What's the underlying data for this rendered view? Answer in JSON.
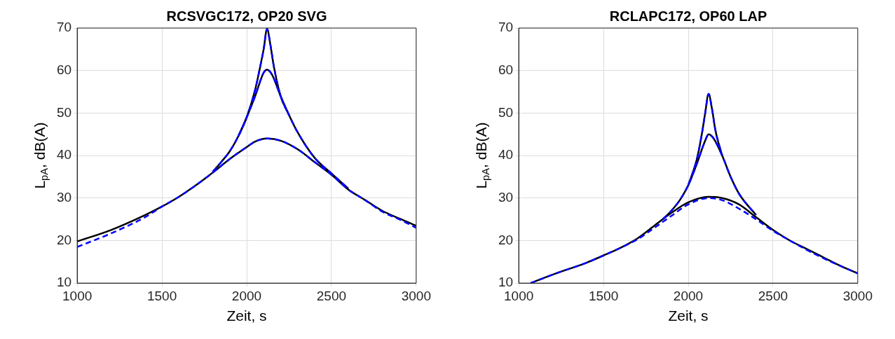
{
  "chart_data": [
    {
      "type": "line",
      "title": "RCSVGC172, OP20 SVG",
      "xlabel": "Zeit, s",
      "ylabel": "L$_{pA}$, dB(A)",
      "xlim": [
        1000,
        3000
      ],
      "xticks": [
        1000,
        1500,
        2000,
        2500,
        3000
      ],
      "ylim": [
        10,
        70
      ],
      "yticks": [
        10,
        20,
        30,
        40,
        50,
        60,
        70
      ],
      "grid": true,
      "legend": false,
      "marker": "none",
      "series": [
        {
          "color": "#000000",
          "line_style": "solid",
          "x": [
            1000,
            1200,
            1400,
            1500,
            1600,
            1700,
            1800,
            1900,
            2000,
            2050,
            2120,
            2200,
            2300,
            2400,
            2500,
            2600,
            2700,
            2800,
            2900,
            3000
          ],
          "values": [
            19.8,
            22.5,
            26,
            28,
            30.3,
            33,
            36,
            39.2,
            42,
            43.3,
            44,
            43.5,
            41.5,
            38.5,
            35.5,
            32,
            29.5,
            27,
            25.2,
            23.5
          ]
        },
        {
          "color": "#000000",
          "line_style": "solid",
          "x": [
            1800,
            1850,
            1900,
            1950,
            2000,
            2050,
            2100,
            2120,
            2150,
            2200,
            2250,
            2300,
            2400,
            2500,
            2600
          ],
          "values": [
            36.2,
            38.5,
            41,
            44.5,
            49,
            54,
            59.5,
            60.2,
            59,
            54,
            49.5,
            45.5,
            39.5,
            35.8,
            32.2
          ]
        },
        {
          "color": "#000000",
          "line_style": "solid",
          "x": [
            1950,
            2000,
            2050,
            2080,
            2100,
            2120,
            2140,
            2160,
            2200,
            2250
          ],
          "values": [
            44.5,
            49,
            55.5,
            61,
            65,
            69.8,
            66,
            61,
            54,
            49.5
          ]
        },
        {
          "color": "#0000ff",
          "line_style": "dashed",
          "x": [
            1000,
            1200,
            1400,
            1500,
            1600,
            1700,
            1800,
            1900,
            2000,
            2050,
            2120,
            2200,
            2300,
            2400,
            2500,
            2600,
            2700,
            2800,
            2900,
            3000
          ],
          "values": [
            18.5,
            21.7,
            25.5,
            28,
            30.3,
            33,
            36,
            39.2,
            42,
            43.3,
            44,
            43.5,
            41.5,
            38.5,
            35.5,
            32,
            29.5,
            26.8,
            25,
            23
          ]
        },
        {
          "color": "#0000ff",
          "line_style": "dashed",
          "x": [
            1800,
            1850,
            1900,
            1950,
            2000,
            2050,
            2100,
            2120,
            2150,
            2200,
            2250,
            2300,
            2400,
            2500,
            2600
          ],
          "values": [
            36.2,
            38.5,
            41,
            44.5,
            49,
            54,
            59.5,
            60.2,
            59,
            54,
            49.5,
            45.5,
            39.5,
            35.8,
            32.2
          ]
        },
        {
          "color": "#0000ff",
          "line_style": "dashed",
          "x": [
            1950,
            2000,
            2050,
            2080,
            2100,
            2120,
            2140,
            2160,
            2200,
            2250
          ],
          "values": [
            44.5,
            49,
            55.5,
            61,
            65,
            69.8,
            66,
            61,
            54,
            49.5
          ]
        }
      ]
    },
    {
      "type": "line",
      "title": "RCLAPC172, OP60 LAP",
      "xlabel": "Zeit, s",
      "ylabel": "L$_{pA}$, dB(A)",
      "xlim": [
        1000,
        3000
      ],
      "xticks": [
        1000,
        1500,
        2000,
        2500,
        3000
      ],
      "ylim": [
        10,
        70
      ],
      "yticks": [
        10,
        20,
        30,
        40,
        50,
        60,
        70
      ],
      "grid": true,
      "legend": false,
      "marker": "none",
      "series": [
        {
          "color": "#000000",
          "line_style": "solid",
          "x": [
            1070,
            1200,
            1400,
            1500,
            1600,
            1700,
            1800,
            1900,
            2000,
            2120,
            2200,
            2300,
            2400,
            2500,
            2600,
            2700,
            2800,
            2900,
            3000
          ],
          "values": [
            10,
            12,
            14.8,
            16.5,
            18.3,
            20.5,
            23.5,
            26.5,
            29,
            30.3,
            30,
            28.5,
            25.5,
            22.5,
            20,
            18,
            16,
            14,
            12.3
          ]
        },
        {
          "color": "#000000",
          "line_style": "solid",
          "x": [
            1850,
            1900,
            1950,
            2000,
            2050,
            2100,
            2120,
            2150,
            2200,
            2250,
            2300,
            2400
          ],
          "values": [
            25,
            27,
            29.5,
            33,
            38,
            43.5,
            45,
            44,
            40,
            35,
            31,
            26
          ]
        },
        {
          "color": "#000000",
          "line_style": "solid",
          "x": [
            2000,
            2050,
            2080,
            2100,
            2120,
            2140,
            2160,
            2200
          ],
          "values": [
            33,
            39,
            45,
            50,
            54.5,
            51,
            46,
            40
          ]
        },
        {
          "color": "#0000ff",
          "line_style": "dashed",
          "x": [
            1070,
            1200,
            1400,
            1500,
            1600,
            1700,
            1800,
            1900,
            2000,
            2120,
            2200,
            2300,
            2400,
            2500,
            2600,
            2700,
            2800,
            2900,
            3000
          ],
          "values": [
            10,
            12,
            14.8,
            16.5,
            18.3,
            20.3,
            23,
            25.8,
            28.5,
            30,
            29.5,
            27.5,
            25,
            22.3,
            20,
            17.8,
            15.8,
            14,
            12.3
          ]
        },
        {
          "color": "#0000ff",
          "line_style": "dashed",
          "x": [
            1850,
            1900,
            1950,
            2000,
            2050,
            2100,
            2120,
            2150,
            2200,
            2250,
            2300,
            2400
          ],
          "values": [
            25,
            27,
            29.5,
            33,
            38,
            43.5,
            45,
            44,
            40,
            35,
            31,
            26
          ]
        },
        {
          "color": "#0000ff",
          "line_style": "dashed",
          "x": [
            2000,
            2050,
            2080,
            2100,
            2120,
            2140,
            2160,
            2200
          ],
          "values": [
            33,
            39,
            45,
            50,
            54.5,
            51,
            46,
            40
          ]
        }
      ]
    }
  ]
}
